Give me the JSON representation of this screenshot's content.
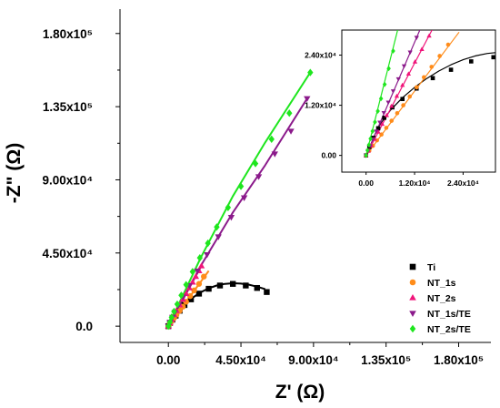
{
  "chart_data": [
    {
      "type": "scatter",
      "xlabel": "Z' (Ω)",
      "ylabel": "-Z\" (Ω)",
      "xlim": [
        -30000,
        200000
      ],
      "ylim": [
        -10000,
        195000
      ],
      "xticks": [
        0,
        45000,
        90000,
        135000,
        180000
      ],
      "xtick_labels": [
        "0.00",
        "4.50x10⁴",
        "9.00x10⁴",
        "1.35x10⁵",
        "1.80x10⁵"
      ],
      "yticks": [
        0,
        45000,
        90000,
        135000,
        180000
      ],
      "ytick_labels": [
        "0.0",
        "4.50x10⁴",
        "9.00x10⁴",
        "1.35x10⁵",
        "1.80x10⁵"
      ],
      "legend_position": "bottom-right",
      "series": [
        {
          "name": "Ti",
          "color": "#000000",
          "marker": "square",
          "x": [
            0,
            1000,
            2500,
            4500,
            7000,
            10000,
            14000,
            19000,
            25000,
            32000,
            40000,
            48000,
            55000,
            61000
          ],
          "y": [
            0,
            2000,
            4000,
            6500,
            9500,
            13000,
            16500,
            20000,
            23000,
            25000,
            26000,
            25000,
            23500,
            21000
          ],
          "fit_x": [
            0,
            5000,
            10000,
            15000,
            20000,
            25000,
            30000,
            35000,
            40000,
            45000,
            50000,
            55000,
            60000
          ],
          "fit_y": [
            0,
            8000,
            13500,
            17500,
            20800,
            23300,
            25000,
            26000,
            26400,
            26200,
            25500,
            24300,
            22800
          ]
        },
        {
          "name": "NT_1s",
          "color": "#ff8c1a",
          "marker": "circle",
          "x": [
            0,
            1000,
            2000,
            3500,
            5000,
            7000,
            9000,
            11000,
            13500,
            16000,
            19000,
            22000
          ],
          "y": [
            0,
            1500,
            3000,
            5000,
            7000,
            9500,
            12000,
            15000,
            18500,
            22000,
            26000,
            30500
          ],
          "fit_x": [
            0,
            25000
          ],
          "fit_y": [
            0,
            34000
          ]
        },
        {
          "name": "NT_2s",
          "color": "#f0157a",
          "marker": "triangle-up",
          "x": [
            0,
            1000,
            2000,
            3500,
            5000,
            7000,
            9000,
            11000,
            13000,
            15000,
            17000,
            19000,
            20500
          ],
          "y": [
            0,
            2000,
            4000,
            7000,
            9500,
            13000,
            16500,
            20000,
            23500,
            27000,
            30500,
            34000,
            37000
          ],
          "fit_x": [
            0,
            21000
          ],
          "fit_y": [
            0,
            38000
          ]
        },
        {
          "name": "NT_1s/TE",
          "color": "#8b1a8b",
          "marker": "triangle-down",
          "x": [
            0,
            1000,
            2500,
            4000,
            6000,
            9000,
            13000,
            18000,
            24000,
            31000,
            39000,
            47000,
            56000,
            66000,
            76000,
            86000
          ],
          "y": [
            0,
            2500,
            5500,
            8500,
            12500,
            18000,
            25000,
            34000,
            44000,
            55000,
            67000,
            79000,
            92000,
            106000,
            120000,
            140000
          ],
          "fit_x": [
            0,
            20000,
            40000,
            60000,
            86000
          ],
          "fit_y": [
            0,
            37000,
            70000,
            99000,
            140000
          ]
        },
        {
          "name": "NT_2s/TE",
          "color": "#1ee61e",
          "marker": "diamond",
          "x": [
            0,
            1000,
            2000,
            3500,
            5500,
            8000,
            11000,
            15000,
            19500,
            24500,
            30000,
            37000,
            45000,
            54000,
            64000,
            75000,
            88000
          ],
          "y": [
            0,
            2500,
            5500,
            9000,
            13500,
            19000,
            25500,
            33500,
            42000,
            51000,
            61000,
            73000,
            86000,
            100000,
            115000,
            131000,
            156000
          ],
          "fit_x": [
            0,
            20000,
            40000,
            60000,
            88000
          ],
          "fit_y": [
            0,
            42000,
            80000,
            113000,
            156000
          ]
        }
      ]
    },
    {
      "type": "scatter",
      "role": "inset",
      "xlim": [
        -6000,
        32000
      ],
      "ylim": [
        -4000,
        30000
      ],
      "xticks": [
        0,
        12000,
        24000
      ],
      "xtick_labels": [
        "0.00",
        "1.20x10⁴",
        "2.40x10⁴"
      ],
      "yticks": [
        0,
        12000,
        24000
      ],
      "ytick_labels": [
        "0.00",
        "1.20x10⁴",
        "2.40x10⁴"
      ],
      "series": [
        {
          "name": "Ti",
          "color": "#000000",
          "marker": "square",
          "x": [
            0,
            800,
            1800,
            3000,
            4500,
            6500,
            9000,
            12500,
            16500,
            21000,
            26000,
            31500
          ],
          "y": [
            0,
            2000,
            4200,
            6500,
            9000,
            11500,
            13500,
            16000,
            18500,
            20500,
            22500,
            23500
          ],
          "fit_x": [
            0,
            3000,
            6000,
            9000,
            12000,
            15000,
            18000,
            21000,
            24000,
            27000,
            30000,
            32000
          ],
          "fit_y": [
            0,
            6800,
            10800,
            13800,
            16300,
            18400,
            20200,
            21700,
            22900,
            23800,
            24400,
            24600
          ]
        },
        {
          "name": "NT_1s",
          "color": "#ff8c1a",
          "marker": "circle",
          "x": [
            0,
            800,
            1700,
            2700,
            3800,
            5000,
            6300,
            7700,
            9200,
            10800,
            12500,
            14300,
            16200,
            18200,
            20300
          ],
          "y": [
            0,
            1100,
            2300,
            3600,
            5000,
            6600,
            8300,
            10100,
            12000,
            14100,
            16300,
            18700,
            21200,
            23800,
            26500
          ],
          "fit_x": [
            0,
            23000
          ],
          "fit_y": [
            0,
            29500
          ]
        },
        {
          "name": "NT_2s",
          "color": "#f0157a",
          "marker": "triangle-up",
          "x": [
            0,
            600,
            1300,
            2100,
            3000,
            4000,
            5100,
            6300,
            7600,
            9000,
            10500,
            12100,
            13800,
            15600
          ],
          "y": [
            0,
            1100,
            2400,
            3900,
            5600,
            7500,
            9600,
            11800,
            14200,
            16800,
            19500,
            22400,
            25400,
            28600
          ],
          "fit_x": [
            0,
            16300
          ],
          "fit_y": [
            0,
            30000
          ]
        },
        {
          "name": "NT_1s/TE",
          "color": "#8b1a8b",
          "marker": "triangle-down",
          "x": [
            0,
            500,
            1000,
            1700,
            2500,
            3400,
            4400,
            5500,
            6700,
            8000,
            9400,
            10900,
            12500
          ],
          "y": [
            0,
            1100,
            2300,
            3900,
            5800,
            7900,
            10200,
            12700,
            15400,
            18300,
            21400,
            24700,
            28200
          ],
          "fit_x": [
            0,
            13300
          ],
          "fit_y": [
            0,
            30000
          ]
        },
        {
          "name": "NT_2s/TE",
          "color": "#1ee61e",
          "marker": "diamond",
          "x": [
            0,
            350,
            700,
            1100,
            1600,
            2200,
            2900,
            3700,
            4600,
            5600,
            6700
          ],
          "y": [
            0,
            1200,
            2500,
            4000,
            5800,
            8000,
            10600,
            13600,
            17000,
            20800,
            25000
          ],
          "fit_x": [
            0,
            7800
          ],
          "fit_y": [
            0,
            30000
          ]
        }
      ]
    }
  ]
}
